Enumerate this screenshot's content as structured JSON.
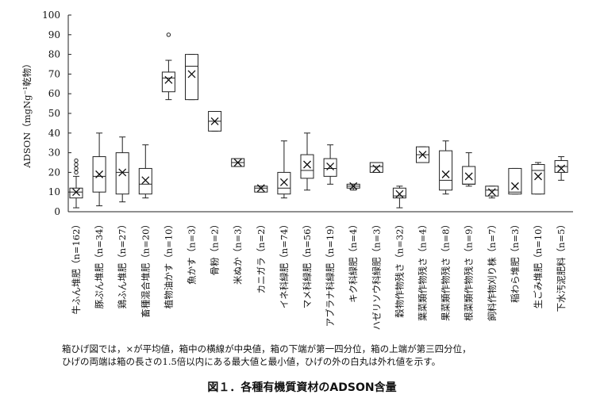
{
  "chart_data": {
    "type": "boxplot",
    "ylabel": "ADSON（mgNg⁻¹乾物）",
    "ylim": [
      0,
      100
    ],
    "yticks": [
      0,
      10,
      20,
      30,
      40,
      50,
      60,
      70,
      80,
      90,
      100
    ],
    "grid": false,
    "legend": "none",
    "categories": [
      "牛ふん堆肥（n=162）",
      "豚ぷん堆肥（n=34）",
      "鶏ふん堆肥（n=27）",
      "畜種混合堆肥（n=20）",
      "植物油かす（n=10）",
      "魚かす（n=3）",
      "骨粉（n=2）",
      "米ぬか（n=3）",
      "カニガラ（n=2）",
      "イネ科緑肥（n=74）",
      "マメ科緑肥（n=56）",
      "アブラナ科緑肥（n=19）",
      "キク科緑肥（n=4）",
      "ハゼリソウ科緑肥（n=3）",
      "穀物作物残さ（n=32）",
      "葉菜類作物残さ（n=4）",
      "果菜類作物残さ（n=8）",
      "根菜類作物残さ（n=9）",
      "飼料作物刈り株（n=7）",
      "稲わら堆肥（n=3）",
      "生ごみ堆肥（n=10）",
      "下水汚泥肥料（n=5）"
    ],
    "boxes": [
      {
        "whisker_low": 2,
        "q1": 7,
        "median": 10,
        "q3": 12,
        "whisker_high": 18,
        "mean": 10,
        "outliers": [
          20,
          22,
          24,
          26
        ]
      },
      {
        "whisker_low": 3,
        "q1": 10,
        "median": 18,
        "q3": 28,
        "whisker_high": 40,
        "mean": 19,
        "outliers": []
      },
      {
        "whisker_low": 5,
        "q1": 9,
        "median": 20,
        "q3": 30,
        "whisker_high": 38,
        "mean": 20,
        "outliers": []
      },
      {
        "whisker_low": 7,
        "q1": 9,
        "median": 14,
        "q3": 22,
        "whisker_high": 34,
        "mean": 16,
        "outliers": []
      },
      {
        "whisker_low": 57,
        "q1": 61,
        "median": 68,
        "q3": 71,
        "whisker_high": 77,
        "mean": 67,
        "outliers": [
          90
        ]
      },
      {
        "whisker_low": 57,
        "q1": 57,
        "median": 74,
        "q3": 80,
        "whisker_high": 80,
        "mean": 70,
        "outliers": []
      },
      {
        "whisker_low": 41,
        "q1": 41,
        "median": 46,
        "q3": 51,
        "whisker_high": 51,
        "mean": 46,
        "outliers": []
      },
      {
        "whisker_low": 23,
        "q1": 23,
        "median": 25,
        "q3": 27,
        "whisker_high": 27,
        "mean": 25,
        "outliers": []
      },
      {
        "whisker_low": 10,
        "q1": 10,
        "median": 12,
        "q3": 13,
        "whisker_high": 13,
        "mean": 12,
        "outliers": []
      },
      {
        "whisker_low": 7,
        "q1": 9,
        "median": 12,
        "q3": 20,
        "whisker_high": 36,
        "mean": 15,
        "outliers": []
      },
      {
        "whisker_low": 11,
        "q1": 17,
        "median": 21,
        "q3": 29,
        "whisker_high": 40,
        "mean": 24,
        "outliers": []
      },
      {
        "whisker_low": 14,
        "q1": 18,
        "median": 22,
        "q3": 27,
        "whisker_high": 34,
        "mean": 23,
        "outliers": []
      },
      {
        "whisker_low": 11,
        "q1": 12,
        "median": 13,
        "q3": 14,
        "whisker_high": 14,
        "mean": 13,
        "outliers": []
      },
      {
        "whisker_low": 20,
        "q1": 20,
        "median": 23,
        "q3": 25,
        "whisker_high": 25,
        "mean": 22,
        "outliers": []
      },
      {
        "whisker_low": 2,
        "q1": 7,
        "median": 8,
        "q3": 12,
        "whisker_high": 13,
        "mean": 9,
        "outliers": []
      },
      {
        "whisker_low": 25,
        "q1": 25,
        "median": 29,
        "q3": 33,
        "whisker_high": 33,
        "mean": 29,
        "outliers": []
      },
      {
        "whisker_low": 9,
        "q1": 11,
        "median": 16,
        "q3": 31,
        "whisker_high": 36,
        "mean": 19,
        "outliers": []
      },
      {
        "whisker_low": 13,
        "q1": 14,
        "median": 14,
        "q3": 23,
        "whisker_high": 30,
        "mean": 18,
        "outliers": []
      },
      {
        "whisker_low": 7,
        "q1": 8,
        "median": 11,
        "q3": 13,
        "whisker_high": 13,
        "mean": 10,
        "outliers": []
      },
      {
        "whisker_low": 9,
        "q1": 9,
        "median": 10,
        "q3": 22,
        "whisker_high": 22,
        "mean": 13,
        "outliers": []
      },
      {
        "whisker_low": 9,
        "q1": 9,
        "median": 21,
        "q3": 24,
        "whisker_high": 25,
        "mean": 18,
        "outliers": []
      },
      {
        "whisker_low": 16,
        "q1": 20,
        "median": 23,
        "q3": 26,
        "whisker_high": 28,
        "mean": 22,
        "outliers": []
      }
    ]
  },
  "notes": {
    "line1": "箱ひげ図では，×が平均値，箱中の横線が中央値，箱の下端が第一四分位，箱の上端が第三四分位，",
    "line2": "ひげの両端は箱の長さの1.5倍以内にある最大値と最小値，ひげの外の白丸は外れ値を示す。"
  },
  "caption": "図１．各種有機質資材のADSON含量"
}
